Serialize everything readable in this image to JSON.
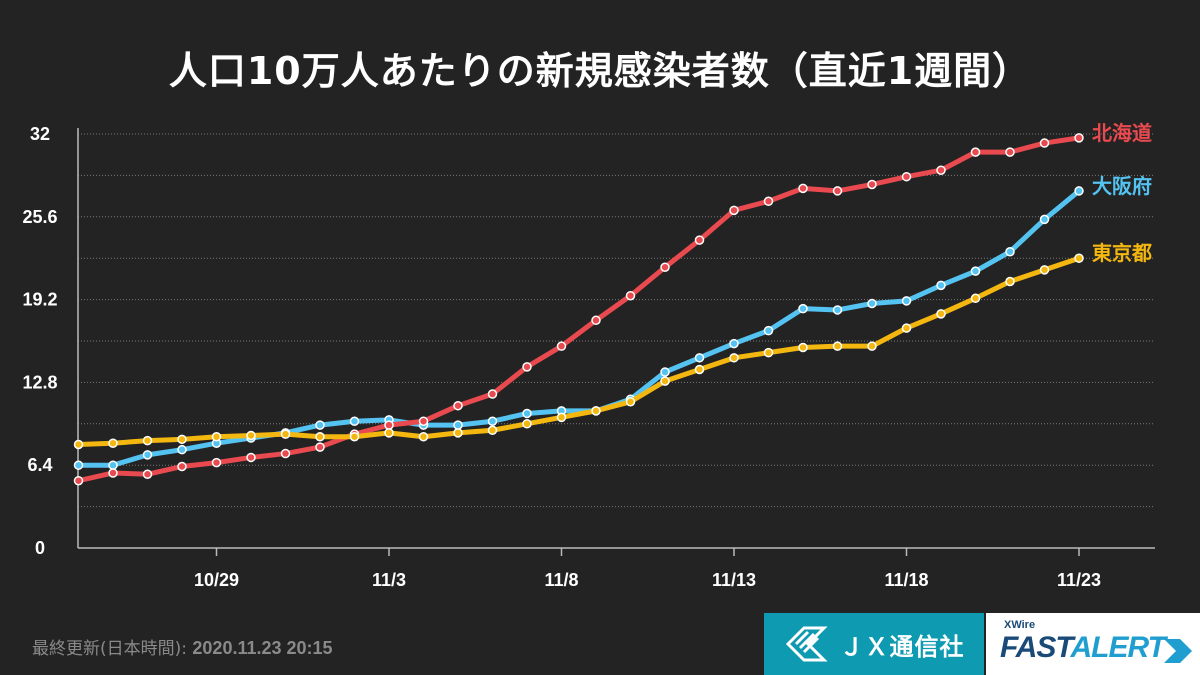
{
  "chart_data": {
    "type": "line",
    "title": "人口10万人あたりの新規感染者数（直近1週間）",
    "y_ticks": [
      "0",
      "6.4",
      "12.8",
      "19.2",
      "25.6",
      "32"
    ],
    "ylim": [
      0,
      32
    ],
    "y_gridlines": [
      3.2,
      6.4,
      9.6,
      12.8,
      16.0,
      19.2,
      22.4,
      25.6,
      28.8
    ],
    "x_tick_labels": [
      "10/29",
      "11/3",
      "11/8",
      "11/13",
      "11/18",
      "11/23"
    ],
    "x_tick_indices": [
      5,
      10,
      15,
      20,
      25,
      30
    ],
    "x_range": [
      0,
      32
    ],
    "series": [
      {
        "name": "北海道",
        "color": "#e84a4f",
        "values": [
          5.2,
          5.8,
          5.7,
          6.3,
          6.6,
          7.0,
          7.3,
          7.8,
          8.8,
          9.5,
          9.8,
          11.0,
          11.9,
          14.0,
          15.6,
          17.6,
          19.5,
          21.7,
          23.8,
          26.1,
          26.8,
          27.8,
          27.6,
          28.1,
          28.7,
          29.2,
          30.6,
          30.6,
          31.3,
          31.7
        ]
      },
      {
        "name": "大阪府",
        "color": "#54c3f1",
        "values": [
          6.4,
          6.4,
          7.2,
          7.6,
          8.1,
          8.5,
          8.9,
          9.5,
          9.8,
          9.9,
          9.5,
          9.5,
          9.8,
          10.4,
          10.6,
          10.6,
          11.5,
          13.6,
          14.7,
          15.8,
          16.8,
          18.5,
          18.4,
          18.9,
          19.1,
          20.3,
          21.4,
          22.9,
          25.4,
          27.6
        ],
        "start_offset": 1
      },
      {
        "name": "東京都",
        "color": "#f4b70f",
        "values": [
          8.0,
          8.1,
          8.3,
          8.4,
          8.6,
          8.7,
          8.8,
          8.6,
          8.6,
          8.9,
          8.6,
          8.9,
          9.1,
          9.6,
          10.1,
          10.6,
          11.3,
          12.9,
          13.8,
          14.7,
          15.1,
          15.5,
          15.6,
          15.6,
          17.0,
          18.1,
          19.3,
          20.6,
          21.5,
          22.4
        ]
      }
    ],
    "end_labels": [
      "北海道",
      "大阪府",
      "東京都"
    ]
  },
  "footer": {
    "label": "最終更新(日本時間):",
    "timestamp": "2020.11.23 20:15"
  },
  "branding": {
    "jx_name": "ＪＸ通信社",
    "xwire": "XWire",
    "fast": "FAST",
    "alert": "ALERT"
  },
  "colors": {
    "background": "#232323",
    "hokkaido": "#e84a4f",
    "osaka": "#54c3f1",
    "tokyo": "#f4b70f",
    "jx_brand": "#0e9ab1"
  }
}
